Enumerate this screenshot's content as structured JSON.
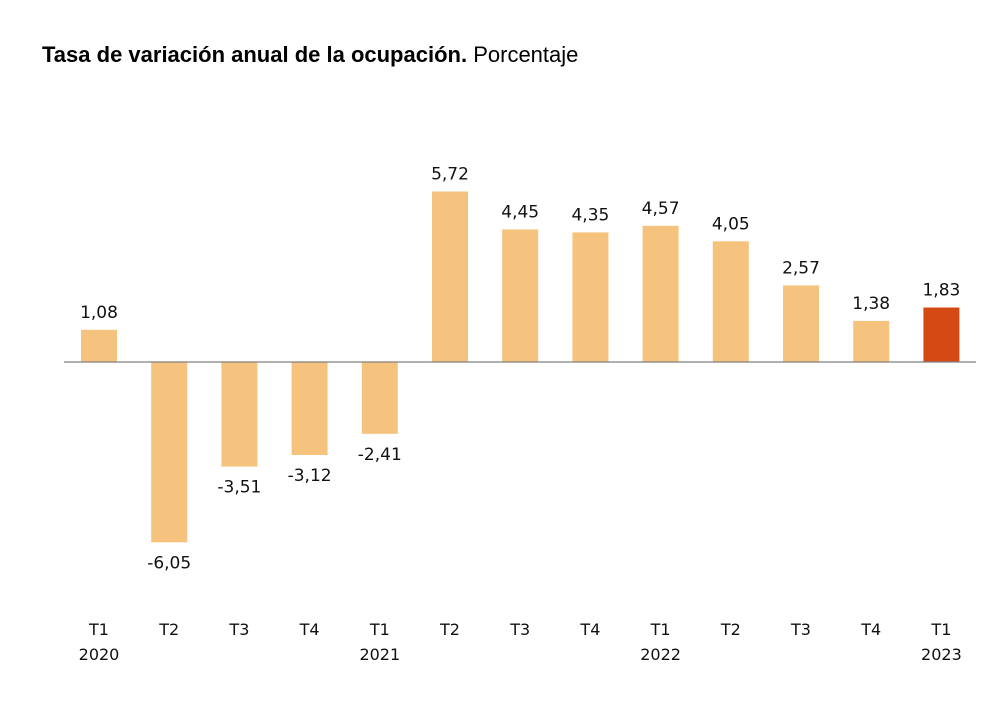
{
  "chart_data": {
    "type": "bar",
    "title": "Tasa de variación anual de la ocupación.",
    "subtitle": "Porcentaje",
    "categories": [
      {
        "quarter": "T1",
        "year": "2020"
      },
      {
        "quarter": "T2",
        "year": ""
      },
      {
        "quarter": "T3",
        "year": ""
      },
      {
        "quarter": "T4",
        "year": ""
      },
      {
        "quarter": "T1",
        "year": "2021"
      },
      {
        "quarter": "T2",
        "year": ""
      },
      {
        "quarter": "T3",
        "year": ""
      },
      {
        "quarter": "T4",
        "year": ""
      },
      {
        "quarter": "T1",
        "year": "2022"
      },
      {
        "quarter": "T2",
        "year": ""
      },
      {
        "quarter": "T3",
        "year": ""
      },
      {
        "quarter": "T4",
        "year": ""
      },
      {
        "quarter": "T1",
        "year": "2023"
      }
    ],
    "values": [
      1.08,
      -6.05,
      -3.51,
      -3.12,
      -2.41,
      5.72,
      4.45,
      4.35,
      4.57,
      4.05,
      2.57,
      1.38,
      1.83
    ],
    "value_labels": [
      "1,08",
      "-6,05",
      "-3,51",
      "-3,12",
      "-2,41",
      "5,72",
      "4,45",
      "4,35",
      "4,57",
      "4,05",
      "2,57",
      "1,38",
      "1,83"
    ],
    "highlight_index": 12,
    "xlabel": "",
    "ylabel": "",
    "grid": false,
    "legend": "none",
    "colors": {
      "bar": "#F6C37E",
      "highlight": "#D54A14",
      "baseline": "#808080"
    }
  }
}
